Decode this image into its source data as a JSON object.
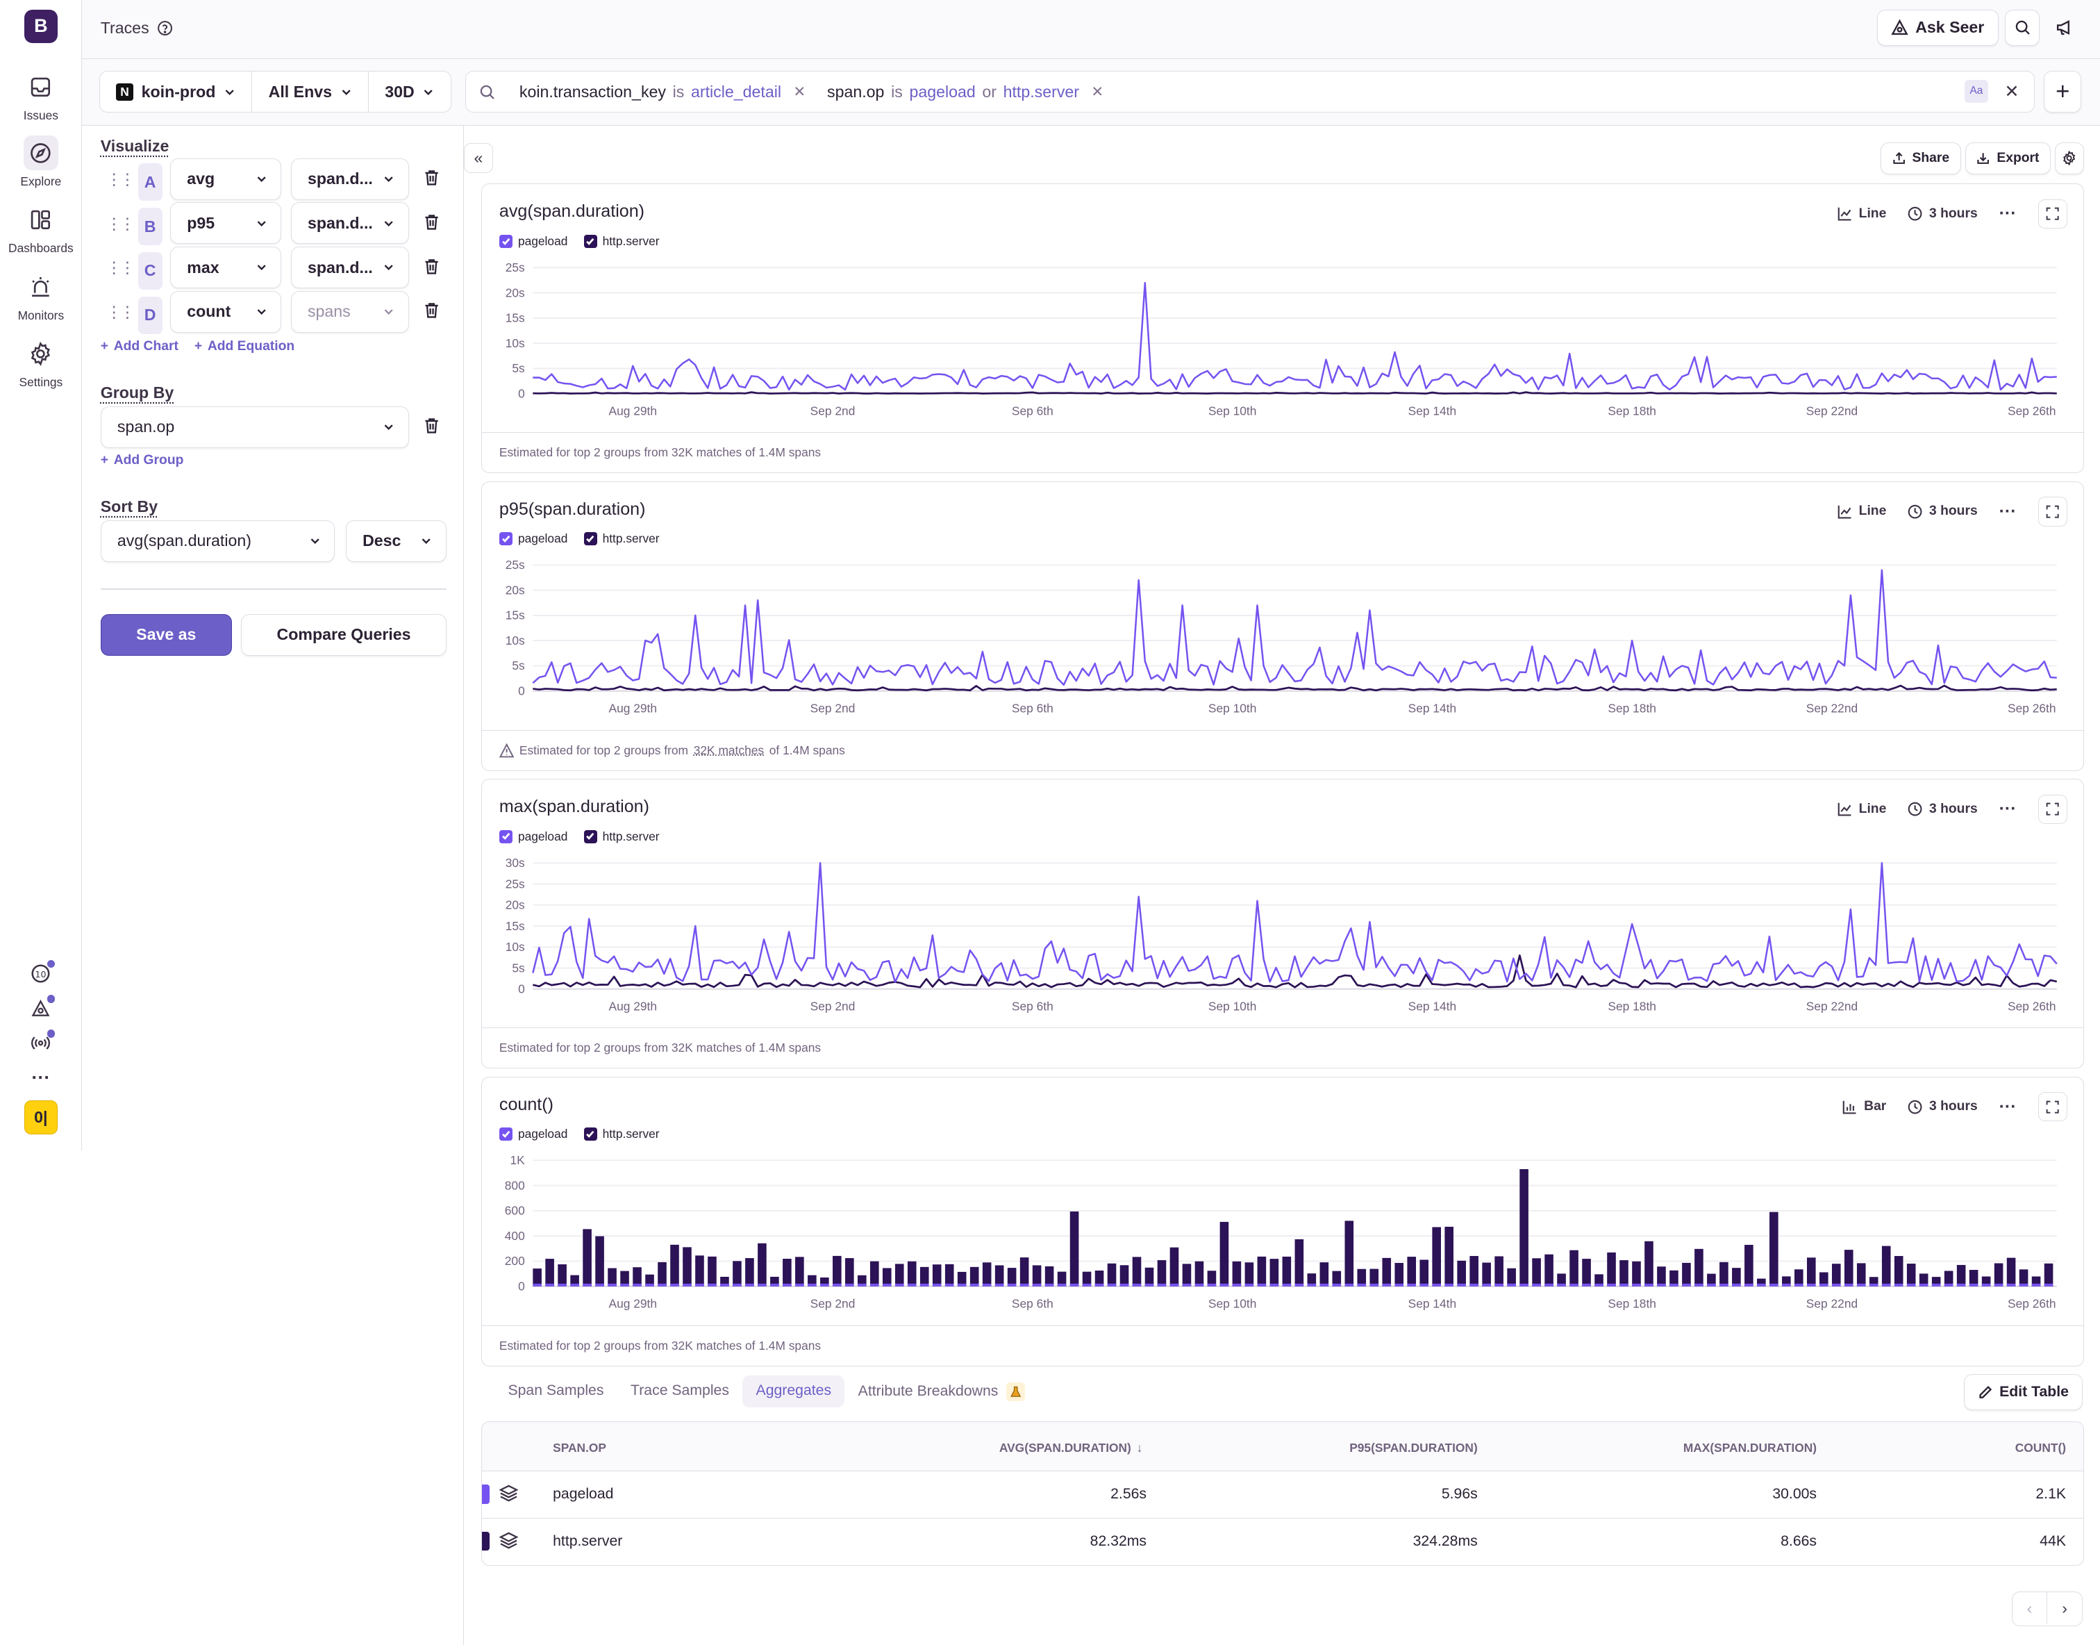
{
  "sidebar": {
    "logo": "B",
    "items": [
      {
        "label": "Issues",
        "icon": "inbox-icon"
      },
      {
        "label": "Explore",
        "icon": "compass-icon"
      },
      {
        "label": "Dashboards",
        "icon": "dashboard-icon"
      },
      {
        "label": "Monitors",
        "icon": "siren-icon"
      },
      {
        "label": "Settings",
        "icon": "gear-icon"
      }
    ],
    "bottom_badge": "0|"
  },
  "header": {
    "title": "Traces",
    "ask_seer": "Ask Seer"
  },
  "filters": {
    "project": "koin-prod",
    "project_logo": "N",
    "environment": "All Envs",
    "period": "30D"
  },
  "search": {
    "tokens": [
      {
        "key": "koin.transaction_key",
        "op": "is",
        "values": [
          "article_detail"
        ],
        "joiner": ""
      },
      {
        "key": "span.op",
        "op": "is",
        "values": [
          "pageload",
          "http.server"
        ],
        "joiner": "or"
      }
    ],
    "case_toggle": "Aa"
  },
  "visualize": {
    "title": "Visualize",
    "rows": [
      {
        "letter": "A",
        "func": "avg",
        "field": "span.d..."
      },
      {
        "letter": "B",
        "func": "p95",
        "field": "span.d..."
      },
      {
        "letter": "C",
        "func": "max",
        "field": "span.d..."
      },
      {
        "letter": "D",
        "func": "count",
        "field": "spans"
      }
    ],
    "add_chart": "Add Chart",
    "add_equation": "Add Equation"
  },
  "group_by": {
    "title": "Group By",
    "value": "span.op",
    "add_group": "Add Group"
  },
  "sort_by": {
    "title": "Sort By",
    "field": "avg(span.duration)",
    "order": "Desc"
  },
  "actions": {
    "save_as": "Save as",
    "compare": "Compare Queries",
    "share": "Share",
    "export": "Export"
  },
  "colors": {
    "pageload": "#7553f0",
    "http_server": "#2c1256",
    "accent": "#6c5fc7"
  },
  "x_ticks": [
    "Aug 29th",
    "Sep 2nd",
    "Sep 6th",
    "Sep 10th",
    "Sep 14th",
    "Sep 18th",
    "Sep 22nd",
    "Sep 26th"
  ],
  "legend": [
    "pageload",
    "http.server"
  ],
  "charts": [
    {
      "title": "avg(span.duration)",
      "type_label": "Line",
      "interval": "3 hours",
      "footer": "Estimated for top 2 groups from 32K matches of 1.4M spans",
      "warn": false,
      "y_ticks": [
        "0",
        "5s",
        "10s",
        "15s",
        "20s",
        "25s"
      ]
    },
    {
      "title": "p95(span.duration)",
      "type_label": "Line",
      "interval": "3 hours",
      "footer_pre": "Estimated for top 2 groups from",
      "footer_link": "32K matches",
      "footer_post": "of 1.4M spans",
      "warn": true,
      "y_ticks": [
        "0",
        "5s",
        "10s",
        "15s",
        "20s",
        "25s"
      ]
    },
    {
      "title": "max(span.duration)",
      "type_label": "Line",
      "interval": "3 hours",
      "footer": "Estimated for top 2 groups from 32K matches of 1.4M spans",
      "warn": false,
      "y_ticks": [
        "0",
        "5s",
        "10s",
        "15s",
        "20s",
        "25s",
        "30s"
      ]
    },
    {
      "title": "count()",
      "type_label": "Bar",
      "interval": "3 hours",
      "footer": "Estimated for top 2 groups from 32K matches of 1.4M spans",
      "warn": false,
      "y_ticks": [
        "0",
        "200",
        "400",
        "600",
        "800",
        "1K"
      ]
    }
  ],
  "chart_data": [
    {
      "type": "line",
      "title": "avg(span.duration)",
      "unit": "s",
      "ylim": [
        0,
        25
      ],
      "x_start": "Aug 27",
      "x_end": "Sep 26",
      "series": [
        {
          "name": "pageload",
          "peaks": [
            [
              10.2,
              22
            ],
            [
              0.98,
              6
            ],
            [
              28,
              7
            ],
            [
              23.5,
              4
            ]
          ],
          "baseline": 2
        },
        {
          "name": "http.server",
          "baseline": 0.08
        }
      ]
    },
    {
      "type": "line",
      "title": "p95(span.duration)",
      "unit": "s",
      "ylim": [
        0,
        25
      ],
      "series": [
        {
          "name": "pageload",
          "peaks": [
            [
              1.2,
              15
            ],
            [
              2.2,
              17
            ],
            [
              2.55,
              18
            ],
            [
              10.1,
              22
            ],
            [
              11,
              17
            ],
            [
              12.5,
              17
            ],
            [
              14.7,
              16
            ],
            [
              24.4,
              19
            ],
            [
              25,
              24
            ]
          ],
          "baseline": 3
        },
        {
          "name": "http.server",
          "baseline": 0.3
        }
      ]
    },
    {
      "type": "line",
      "title": "max(span.duration)",
      "unit": "s",
      "ylim": [
        0,
        30
      ],
      "series": [
        {
          "name": "pageload",
          "peaks": [
            [
              3.7,
              30
            ],
            [
              1.2,
              15
            ],
            [
              10.1,
              22
            ],
            [
              12.5,
              21
            ],
            [
              14.7,
              16
            ],
            [
              24.4,
              19
            ],
            [
              25,
              30
            ]
          ],
          "baseline": 4
        },
        {
          "name": "http.server",
          "peaks": [
            [
              17.8,
              8
            ],
            [
              29.2,
              8
            ]
          ],
          "baseline": 1
        }
      ]
    },
    {
      "type": "bar",
      "title": "count()",
      "ylim": [
        0,
        1000
      ],
      "series": [
        {
          "name": "http.server",
          "peaks": [
            [
              17.9,
              930
            ],
            [
              14.3,
              520
            ],
            [
              22.9,
              590
            ],
            [
              24.5,
              630
            ],
            [
              6.2,
              610
            ],
            [
              16.1,
              470
            ]
          ],
          "baseline": 150
        },
        {
          "name": "pageload",
          "baseline": 8
        }
      ]
    }
  ],
  "bottom_tabs": [
    "Span Samples",
    "Trace Samples",
    "Aggregates",
    "Attribute Breakdowns"
  ],
  "active_tab": "Aggregates",
  "edit_table": "Edit Table",
  "table": {
    "columns": [
      "SPAN.OP",
      "AVG(SPAN.DURATION)",
      "P95(SPAN.DURATION)",
      "MAX(SPAN.DURATION)",
      "COUNT()"
    ],
    "sort_icon": "arrow-down-icon",
    "rows": [
      {
        "op": "pageload",
        "avg": "2.56s",
        "p95": "5.96s",
        "max": "30.00s",
        "count": "2.1K",
        "color": "#7553f0"
      },
      {
        "op": "http.server",
        "avg": "82.32ms",
        "p95": "324.28ms",
        "max": "8.66s",
        "count": "44K",
        "color": "#2c1256"
      }
    ]
  }
}
